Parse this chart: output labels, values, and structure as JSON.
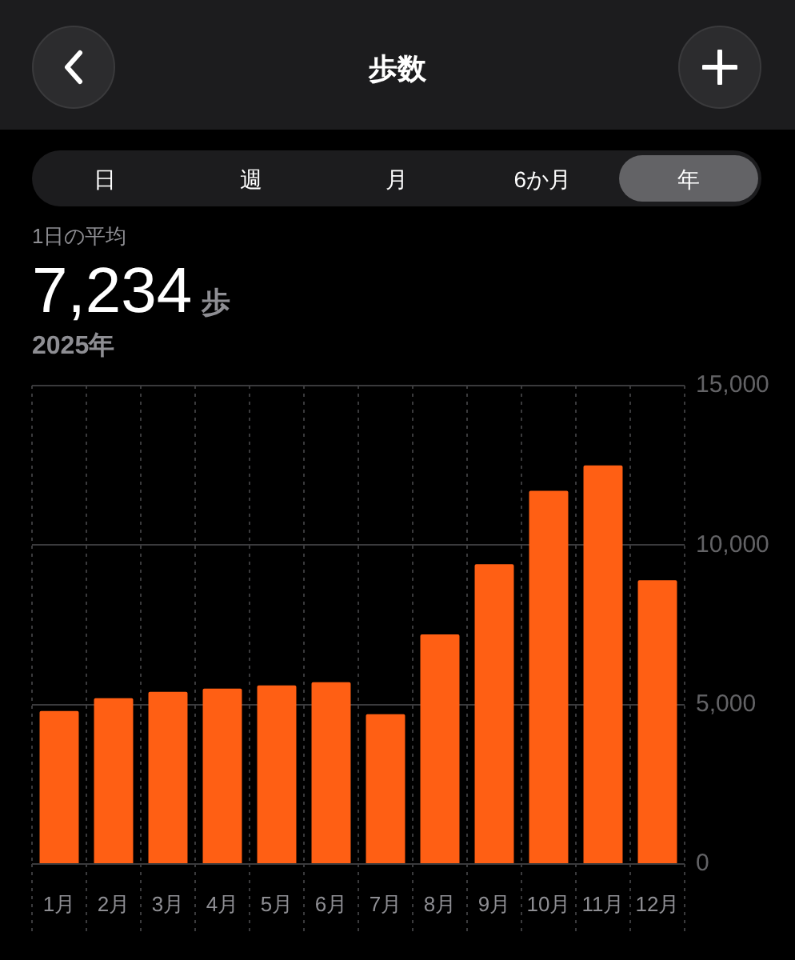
{
  "chart_data": {
    "type": "bar",
    "title": "歩数",
    "subtitle": "1日の平均",
    "annotations": [
      "7,234",
      "歩",
      "2025年",
      "日",
      "週",
      "月",
      "6か月",
      "年"
    ],
    "categories": [
      "1月",
      "2月",
      "3月",
      "4月",
      "5月",
      "6月",
      "7月",
      "8月",
      "9月",
      "10月",
      "11月",
      "12月"
    ],
    "values": [
      4800,
      5200,
      5400,
      5500,
      5600,
      5700,
      4700,
      7200,
      9400,
      11700,
      12500,
      8900
    ],
    "color": "#ff5f14",
    "ylim": [
      0,
      15000
    ],
    "yticks": [
      0,
      {
        "value": 5000,
        "label": "5,000"
      },
      {
        "value": 10000,
        "label": "10,000"
      },
      {
        "value": 15000,
        "label": "15,000"
      }
    ],
    "grid": true
  }
}
